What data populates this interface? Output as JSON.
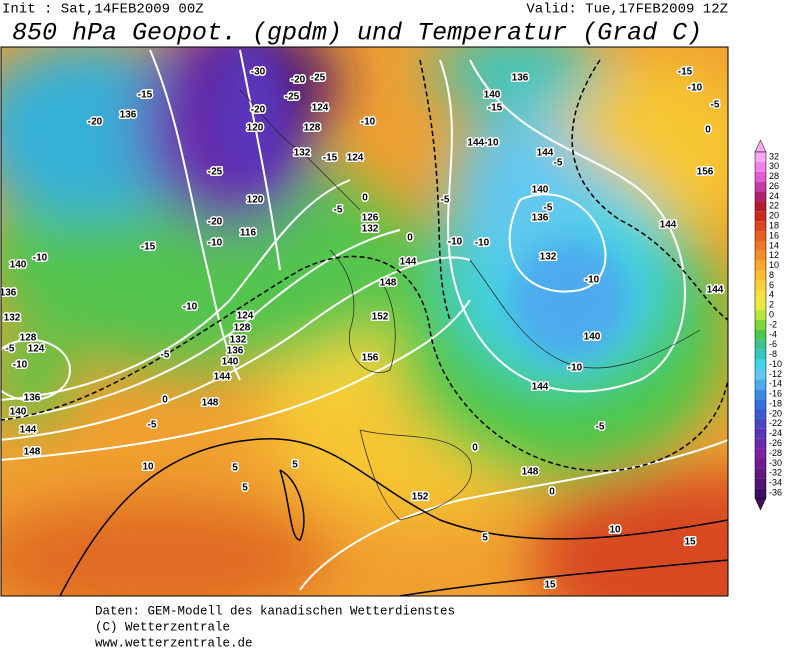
{
  "header": {
    "init": "Init : Sat,14FEB2009 00Z",
    "valid": "Valid: Tue,17FEB2009 12Z",
    "title": "850 hPa Geopot. (gpdm) und Temperatur (Grad C)"
  },
  "colorbar": {
    "labels": [
      32,
      30,
      28,
      26,
      24,
      22,
      20,
      18,
      16,
      14,
      12,
      10,
      8,
      6,
      4,
      2,
      0,
      -2,
      -4,
      -6,
      -8,
      -10,
      -12,
      -14,
      -16,
      -18,
      -20,
      -22,
      -24,
      -26,
      -28,
      -30,
      -32,
      -34,
      -36
    ],
    "colors": [
      "#f7a8f0",
      "#ee7fe6",
      "#e05ad0",
      "#c93aa8",
      "#b01f6a",
      "#b81830",
      "#cc2a1e",
      "#dd4420",
      "#e65c22",
      "#ee7624",
      "#f38e26",
      "#f6a62a",
      "#f8bd30",
      "#f8d236",
      "#f6e23c",
      "#e8ec40",
      "#b8e63c",
      "#7cd63a",
      "#4cc84a",
      "#3cc28a",
      "#34c6c0",
      "#40d2e6",
      "#62c8f0",
      "#4eaaee",
      "#3c8ce6",
      "#3470da",
      "#3a5ad0",
      "#4a46c4",
      "#5a36b8",
      "#6a2aac",
      "#7a22a0",
      "#6e1c90",
      "#5e1880",
      "#4e1470",
      "#3e0e60"
    ]
  },
  "map_labels": [
    "-15",
    "-20",
    "136",
    "-25",
    "-20",
    "-10",
    "116",
    "120",
    "-15",
    "-10",
    "140",
    "136",
    "132",
    "128",
    "-5",
    "124",
    "-10",
    "136",
    "140",
    "144",
    "148",
    "-10",
    "124",
    "128",
    "132",
    "136",
    "140",
    "144",
    "148",
    "0",
    "-5",
    "-5",
    "10",
    "5",
    "5",
    "5",
    "152",
    "5",
    "10",
    "15",
    "15",
    "144",
    "148",
    "152",
    "156",
    "0",
    "-5",
    "126",
    "132",
    "0",
    "-15",
    "124",
    "-10",
    "128",
    "132",
    "124",
    "-20",
    "120",
    "-25",
    "-20",
    "-30",
    "-25",
    "-5",
    "-10",
    "-10",
    "136",
    "140",
    "-15",
    "144-10",
    "144",
    "-5",
    "140",
    "-5",
    "136",
    "132",
    "-10",
    "140",
    "-10",
    "144",
    "-5",
    "0",
    "148",
    "0",
    "144",
    "156",
    "144",
    "-15",
    "-10",
    "-5",
    "0"
  ],
  "footer": [
    "Daten: GEM-Modell des kanadischen Wetterdienstes",
    "(C) Wetterzentrale",
    "www.wetterzentrale.de"
  ]
}
